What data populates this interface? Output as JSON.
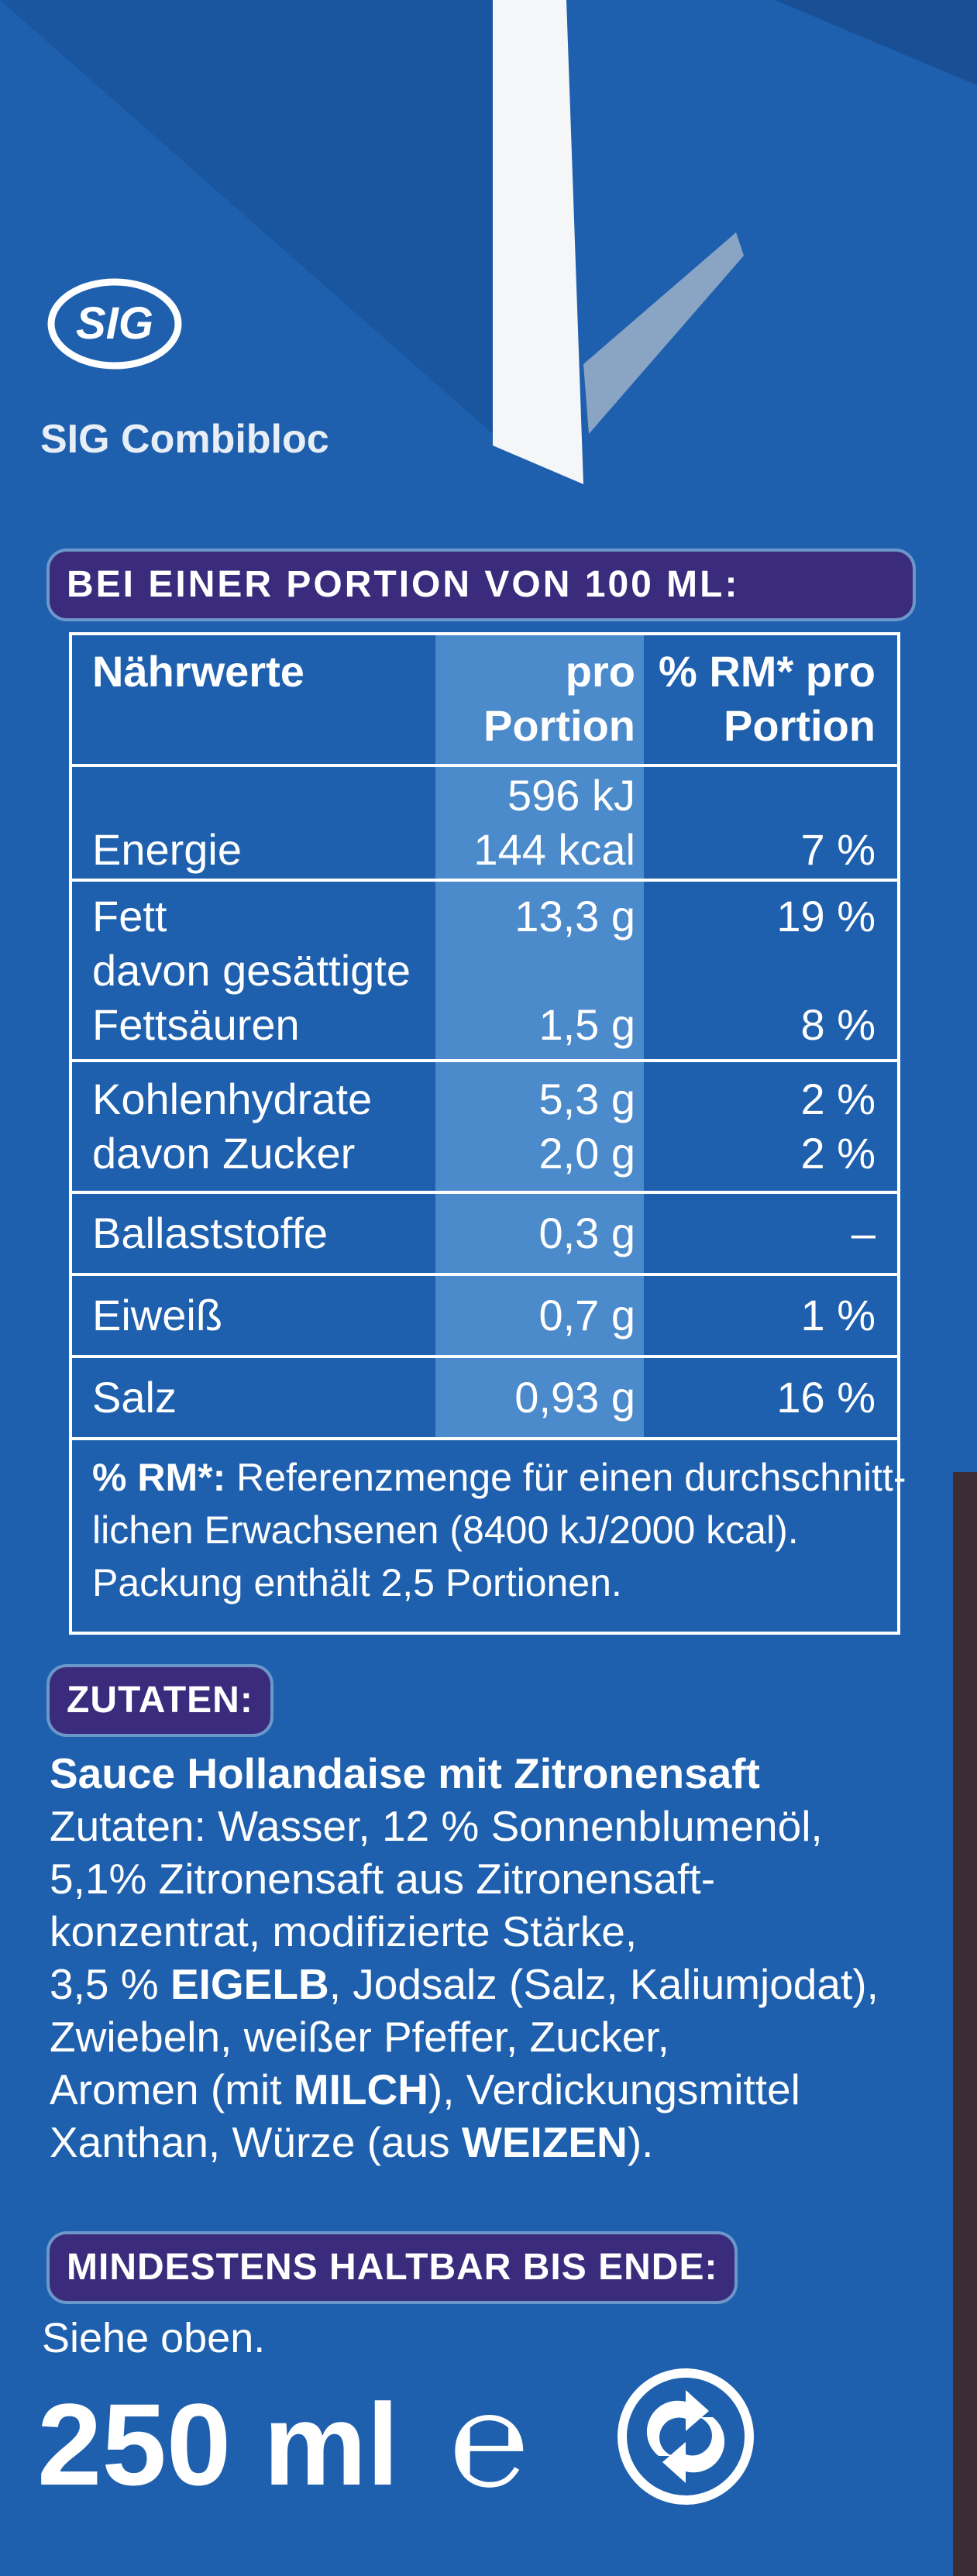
{
  "brand": {
    "logo": "SIG",
    "name": "SIG Combibloc"
  },
  "nutrition": {
    "heading": "BEI EINER PORTION VON 100 ML:",
    "header": {
      "label": [
        "Nährwerte"
      ],
      "amount": [
        "pro",
        "Portion"
      ],
      "percent": [
        "% RM* pro",
        "Portion"
      ]
    },
    "rows": [
      [
        {
          "label": [
            "Energie"
          ],
          "amount": [
            "596 kJ",
            "144 kcal"
          ],
          "percent": [
            "7 %"
          ]
        }
      ],
      [
        {
          "label": [
            "Fett"
          ],
          "amount": [
            "13,3 g"
          ],
          "percent": [
            "19 %"
          ]
        },
        {
          "label": [
            "davon gesättigte",
            "Fettsäuren"
          ],
          "amount": [
            "1,5 g"
          ],
          "percent": [
            "8 %"
          ]
        }
      ],
      [
        {
          "label": [
            "Kohlenhydrate"
          ],
          "amount": [
            "5,3 g"
          ],
          "percent": [
            "2 %"
          ]
        },
        {
          "label": [
            "davon Zucker"
          ],
          "amount": [
            "2,0 g"
          ],
          "percent": [
            "2 %"
          ]
        }
      ],
      [
        {
          "label": [
            "Ballaststoffe"
          ],
          "amount": [
            "0,3 g"
          ],
          "percent": [
            "–"
          ]
        }
      ],
      [
        {
          "label": [
            "Eiweiß"
          ],
          "amount": [
            "0,7 g"
          ],
          "percent": [
            "1 %"
          ]
        }
      ],
      [
        {
          "label": [
            "Salz"
          ],
          "amount": [
            "0,93 g"
          ],
          "percent": [
            "16 %"
          ]
        }
      ]
    ],
    "footnote": [
      [
        {
          "text": "% RM*:",
          "bold": true
        },
        {
          "text": " Referenzmenge für einen durchschnitt-"
        }
      ],
      [
        {
          "text": "lichen  Erwachsenen (8400 kJ/2000 kcal)."
        }
      ],
      [
        {
          "text": "Packung enthält 2,5 Portionen."
        }
      ]
    ]
  },
  "ingredients": {
    "heading": "ZUTATEN:",
    "title": "Sauce Hollandaise mit Zitronensaft",
    "lines": [
      [
        {
          "text": "Zutaten: Wasser, 12 % Sonnenblumenöl,"
        }
      ],
      [
        {
          "text": "5,1% Zitronensaft aus Zitronensaft-"
        }
      ],
      [
        {
          "text": "konzentrat, modifizierte Stärke,"
        }
      ],
      [
        {
          "text": "3,5 % "
        },
        {
          "text": "EIGELB",
          "bold": true
        },
        {
          "text": ", Jodsalz (Salz, Kaliumjodat),"
        }
      ],
      [
        {
          "text": "Zwiebeln, weißer Pfeffer, Zucker,"
        }
      ],
      [
        {
          "text": "Aromen (mit "
        },
        {
          "text": "MILCH",
          "bold": true
        },
        {
          "text": "), Verdickungsmittel"
        }
      ],
      [
        {
          "text": "Xanthan, Würze (aus "
        },
        {
          "text": "WEIZEN",
          "bold": true
        },
        {
          "text": ")."
        }
      ]
    ]
  },
  "best_before": {
    "heading": "MINDESTENS HALTBAR BIS ENDE:",
    "text": "Siehe oben."
  },
  "volume": {
    "text": "250 ml",
    "estimate_sign": "℮"
  }
}
